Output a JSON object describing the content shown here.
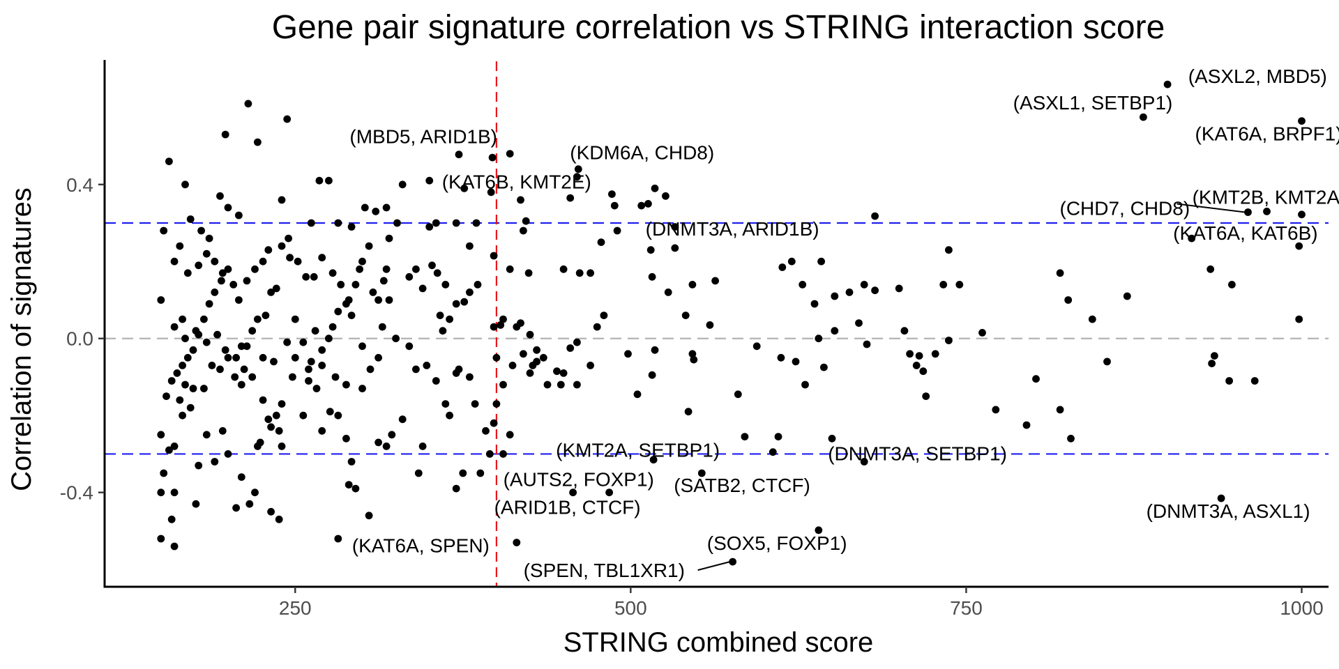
{
  "chart_data": {
    "type": "scatter",
    "title": "Gene pair signature correlation vs STRING interaction score",
    "xlabel": "STRING combined score",
    "ylabel": "Correlation of signatures",
    "xlim": [
      108,
      1020
    ],
    "ylim": [
      -0.645,
      0.72
    ],
    "xticks": [
      250,
      500,
      750,
      1000
    ],
    "xtick_labels": [
      "250",
      "500",
      "750",
      "1000"
    ],
    "yticks": [
      0.4,
      0.0,
      -0.4
    ],
    "ytick_labels": [
      "0.4",
      "0.0",
      "-0.4"
    ],
    "grid": false,
    "reference_lines": {
      "vertical": [
        {
          "x": 400,
          "color": "#e8161b",
          "style": "dashed"
        }
      ],
      "horizontal": [
        {
          "y": 0.3,
          "color": "#1f1ff0",
          "style": "dashed"
        },
        {
          "y": -0.3,
          "color": "#1f1ff0",
          "style": "dashed"
        },
        {
          "y": 0.0,
          "color": "#b3b3b3",
          "style": "dashed"
        }
      ]
    },
    "point_color": "#000000",
    "annotations": [
      {
        "label": "(ASXL2, MBD5)",
        "x": 905,
        "y": 0.66
      },
      {
        "label": "(ASXL1, SETBP1)",
        "x": 882,
        "y": 0.575
      },
      {
        "label": "(KAT6A, BRPF1)",
        "x": 999,
        "y": 0.565
      },
      {
        "label": "(MBD5, ARID1B)",
        "x": 372,
        "y": 0.478
      },
      {
        "label": "(KDM6A, CHD8)",
        "x": 461,
        "y": 0.44
      },
      {
        "label": "(KAT6B, KMT2E)",
        "x": 376,
        "y": 0.39
      },
      {
        "label": "(CHD7, CHD8)",
        "x": 960,
        "y": 0.328
      },
      {
        "label": "(KMT2B, KMT2A)",
        "x": 974,
        "y": 0.33
      },
      {
        "label": "(DNMT3A, ARID1B)",
        "x": 682,
        "y": 0.318
      },
      {
        "label": "(KAT6A, KAT6B)",
        "x": 999,
        "y": 0.322
      },
      {
        "label": "(KMT2A, SETBP1)",
        "x": 517,
        "y": -0.315
      },
      {
        "label": "(DNMT3A, SETBP1)",
        "x": 674,
        "y": -0.32
      },
      {
        "label": "(AUTS2, FOXP1)",
        "x": 457,
        "y": -0.4
      },
      {
        "label": "(SATB2, CTCF)",
        "x": 553,
        "y": -0.35
      },
      {
        "label": "(ARID1B, CTCF)",
        "x": 484,
        "y": -0.405
      },
      {
        "label": "(DNMT3A, ASXL1)",
        "x": 940,
        "y": -0.415
      },
      {
        "label": "(KAT6A, SPEN)",
        "x": 415,
        "y": -0.53
      },
      {
        "label": "(SOX5, FOXP1)",
        "x": 640,
        "y": -0.498
      },
      {
        "label": "(SPEN, TBL1XR1)",
        "x": 576,
        "y": -0.58
      }
    ],
    "points": [
      [
        900,
        0.66
      ],
      [
        882,
        0.575
      ],
      [
        1000,
        0.565
      ],
      [
        372,
        0.478
      ],
      [
        410,
        0.48
      ],
      [
        461,
        0.44
      ],
      [
        376,
        0.39
      ],
      [
        397,
        0.47
      ],
      [
        960,
        0.328
      ],
      [
        974,
        0.33
      ],
      [
        682,
        0.318
      ],
      [
        1000,
        0.322
      ],
      [
        517,
        -0.315
      ],
      [
        674,
        -0.32
      ],
      [
        457,
        -0.4
      ],
      [
        553,
        -0.35
      ],
      [
        484,
        -0.4
      ],
      [
        940,
        -0.415
      ],
      [
        415,
        -0.53
      ],
      [
        640,
        -0.498
      ],
      [
        576,
        -0.58
      ],
      [
        998,
        0.24
      ],
      [
        918,
        0.26
      ],
      [
        998,
        0.05
      ],
      [
        932,
        0.18
      ],
      [
        948,
        0.14
      ],
      [
        935,
        -0.045
      ],
      [
        933,
        -0.065
      ],
      [
        946,
        -0.11
      ],
      [
        965,
        -0.11
      ],
      [
        870,
        0.11
      ],
      [
        820,
        0.17
      ],
      [
        826,
        0.1
      ],
      [
        844,
        0.05
      ],
      [
        855,
        -0.06
      ],
      [
        802,
        -0.105
      ],
      [
        795,
        -0.225
      ],
      [
        820,
        -0.185
      ],
      [
        828,
        -0.26
      ],
      [
        772,
        -0.185
      ],
      [
        737,
        0.23
      ],
      [
        745,
        0.14
      ],
      [
        733,
        0.14
      ],
      [
        737,
        -0.005
      ],
      [
        762,
        0.015
      ],
      [
        727,
        -0.04
      ],
      [
        715,
        -0.045
      ],
      [
        713,
        -0.07
      ],
      [
        718,
        -0.085
      ],
      [
        720,
        -0.15
      ],
      [
        704,
        0.02
      ],
      [
        708,
        -0.04
      ],
      [
        700,
        0.13
      ],
      [
        682,
        0.125
      ],
      [
        670,
        0.04
      ],
      [
        674,
        0.14
      ],
      [
        663,
        0.12
      ],
      [
        652,
        0.11
      ],
      [
        652,
        0.02
      ],
      [
        637,
        0.09
      ],
      [
        642,
        0.2
      ],
      [
        620,
        0.2
      ],
      [
        628,
        0.14
      ],
      [
        613,
        0.185
      ],
      [
        640,
        0.0
      ],
      [
        644,
        -0.075
      ],
      [
        650,
        -0.26
      ],
      [
        630,
        -0.12
      ],
      [
        676,
        -0.015
      ],
      [
        612,
        -0.05
      ],
      [
        623,
        -0.06
      ],
      [
        594,
        -0.02
      ],
      [
        610,
        -0.255
      ],
      [
        606,
        -0.295
      ],
      [
        580,
        -0.145
      ],
      [
        585,
        -0.255
      ],
      [
        526,
        0.37
      ],
      [
        518,
        0.39
      ],
      [
        513,
        0.35
      ],
      [
        508,
        0.345
      ],
      [
        533,
        0.29
      ],
      [
        533,
        0.235
      ],
      [
        528,
        0.12
      ],
      [
        515,
        0.23
      ],
      [
        516,
        0.16
      ],
      [
        541,
        0.06
      ],
      [
        563,
        0.15
      ],
      [
        546,
        0.14
      ],
      [
        559,
        0.035
      ],
      [
        546,
        -0.04
      ],
      [
        547,
        -0.055
      ],
      [
        543,
        -0.19
      ],
      [
        518,
        -0.03
      ],
      [
        516,
        -0.095
      ],
      [
        505,
        -0.145
      ],
      [
        498,
        -0.04
      ],
      [
        490,
        0.28
      ],
      [
        488,
        0.345
      ],
      [
        486,
        0.375
      ],
      [
        478,
        0.25
      ],
      [
        460,
        0.42
      ],
      [
        455,
        0.365
      ],
      [
        450,
        0.18
      ],
      [
        462,
        0.17
      ],
      [
        470,
        0.17
      ],
      [
        475,
        0.03
      ],
      [
        480,
        0.06
      ],
      [
        470,
        -0.07
      ],
      [
        460,
        -0.12
      ],
      [
        460,
        -0.01
      ],
      [
        455,
        -0.025
      ],
      [
        450,
        -0.09
      ],
      [
        445,
        -0.085
      ],
      [
        435,
        -0.05
      ],
      [
        430,
        -0.06
      ],
      [
        425,
        -0.09
      ],
      [
        420,
        0.28
      ],
      [
        418,
        0.36
      ],
      [
        422,
        0.305
      ],
      [
        424,
        0.17
      ],
      [
        410,
        0.18
      ],
      [
        418,
        0.04
      ],
      [
        425,
        0.01
      ],
      [
        415,
        0.03
      ],
      [
        405,
        0.05
      ],
      [
        403,
        0.035
      ],
      [
        400,
        -0.17
      ],
      [
        405,
        -0.12
      ],
      [
        412,
        -0.07
      ],
      [
        420,
        -0.04
      ],
      [
        430,
        -0.03
      ],
      [
        438,
        -0.12
      ],
      [
        448,
        -0.12
      ],
      [
        427,
        -0.07
      ],
      [
        398,
        0.215
      ],
      [
        396,
        0.38
      ],
      [
        385,
        0.3
      ],
      [
        380,
        0.24
      ],
      [
        370,
        0.3
      ],
      [
        380,
        0.12
      ],
      [
        386,
        0.14
      ],
      [
        376,
        0.095
      ],
      [
        370,
        0.09
      ],
      [
        365,
        0.05
      ],
      [
        358,
        0.06
      ],
      [
        362,
        0.14
      ],
      [
        355,
        0.3
      ],
      [
        350,
        0.29
      ],
      [
        345,
        0.13
      ],
      [
        340,
        0.18
      ],
      [
        335,
        0.16
      ],
      [
        330,
        0.4
      ],
      [
        326,
        0.3
      ],
      [
        320,
        0.26
      ],
      [
        318,
        0.18
      ],
      [
        316,
        0.15
      ],
      [
        312,
        0.1
      ],
      [
        308,
        0.12
      ],
      [
        305,
        0.24
      ],
      [
        302,
        0.34
      ],
      [
        300,
        0.2
      ],
      [
        298,
        0.18
      ],
      [
        295,
        0.14
      ],
      [
        290,
        0.1
      ],
      [
        288,
        0.09
      ],
      [
        282,
        0.07
      ],
      [
        278,
        0.03
      ],
      [
        275,
        0.0
      ],
      [
        270,
        -0.03
      ],
      [
        265,
        0.02
      ],
      [
        260,
        -0.08
      ],
      [
        256,
        -0.01
      ],
      [
        250,
        0.05
      ],
      [
        245,
        0.26
      ],
      [
        240,
        0.36
      ],
      [
        236,
        0.13
      ],
      [
        232,
        0.12
      ],
      [
        228,
        0.06
      ],
      [
        222,
        0.05
      ],
      [
        218,
        0.02
      ],
      [
        214,
        -0.02
      ],
      [
        210,
        -0.12
      ],
      [
        205,
        -0.1
      ],
      [
        200,
        0.18
      ],
      [
        195,
        0.15
      ],
      [
        190,
        0.12
      ],
      [
        186,
        0.09
      ],
      [
        182,
        0.05
      ],
      [
        178,
        0.01
      ],
      [
        174,
        -0.03
      ],
      [
        170,
        -0.05
      ],
      [
        166,
        -0.07
      ],
      [
        162,
        -0.09
      ],
      [
        158,
        -0.11
      ],
      [
        154,
        -0.15
      ],
      [
        150,
        -0.25
      ],
      [
        152,
        0.28
      ],
      [
        150,
        0.1
      ],
      [
        156,
        0.46
      ],
      [
        168,
        0.4
      ],
      [
        172,
        0.31
      ],
      [
        180,
        0.28
      ],
      [
        186,
        0.26
      ],
      [
        194,
        0.37
      ],
      [
        200,
        0.34
      ],
      [
        208,
        0.32
      ],
      [
        215,
        0.61
      ],
      [
        222,
        0.51
      ],
      [
        198,
        0.53
      ],
      [
        244,
        0.57
      ],
      [
        262,
        0.3
      ],
      [
        268,
        0.41
      ],
      [
        275,
        0.41
      ],
      [
        282,
        0.3
      ],
      [
        292,
        0.29
      ],
      [
        310,
        0.33
      ],
      [
        318,
        0.34
      ],
      [
        350,
        0.41
      ],
      [
        352,
        0.19
      ],
      [
        356,
        0.17
      ],
      [
        360,
        0.02
      ],
      [
        372,
        -0.08
      ],
      [
        380,
        -0.1
      ],
      [
        384,
        -0.17
      ],
      [
        392,
        -0.24
      ],
      [
        398,
        -0.22
      ],
      [
        395,
        -0.3
      ],
      [
        388,
        -0.35
      ],
      [
        375,
        -0.35
      ],
      [
        370,
        -0.39
      ],
      [
        365,
        -0.2
      ],
      [
        355,
        -0.11
      ],
      [
        348,
        -0.07
      ],
      [
        345,
        -0.28
      ],
      [
        342,
        -0.35
      ],
      [
        330,
        -0.21
      ],
      [
        322,
        -0.25
      ],
      [
        318,
        -0.28
      ],
      [
        312,
        -0.27
      ],
      [
        300,
        -0.13
      ],
      [
        292,
        -0.32
      ],
      [
        288,
        -0.26
      ],
      [
        282,
        -0.2
      ],
      [
        276,
        -0.19
      ],
      [
        270,
        -0.24
      ],
      [
        266,
        -0.13
      ],
      [
        260,
        -0.11
      ],
      [
        256,
        -0.2
      ],
      [
        250,
        -0.05
      ],
      [
        244,
        -0.01
      ],
      [
        240,
        -0.17
      ],
      [
        236,
        -0.2
      ],
      [
        230,
        -0.21
      ],
      [
        224,
        -0.27
      ],
      [
        222,
        -0.28
      ],
      [
        220,
        -0.4
      ],
      [
        216,
        -0.43
      ],
      [
        210,
        -0.36
      ],
      [
        206,
        -0.44
      ],
      [
        200,
        -0.3
      ],
      [
        196,
        -0.24
      ],
      [
        190,
        -0.32
      ],
      [
        184,
        -0.25
      ],
      [
        178,
        -0.33
      ],
      [
        176,
        -0.43
      ],
      [
        172,
        -0.18
      ],
      [
        166,
        -0.2
      ],
      [
        160,
        -0.4
      ],
      [
        158,
        -0.47
      ],
      [
        160,
        -0.54
      ],
      [
        150,
        -0.52
      ],
      [
        150,
        -0.4
      ],
      [
        152,
        -0.35
      ],
      [
        156,
        -0.29
      ],
      [
        160,
        -0.28
      ],
      [
        164,
        -0.16
      ],
      [
        168,
        -0.12
      ],
      [
        174,
        -0.13
      ],
      [
        182,
        -0.13
      ],
      [
        188,
        -0.07
      ],
      [
        194,
        -0.08
      ],
      [
        200,
        -0.05
      ],
      [
        210,
        -0.02
      ],
      [
        218,
        -0.1
      ],
      [
        226,
        -0.16
      ],
      [
        232,
        -0.23
      ],
      [
        238,
        -0.24
      ],
      [
        240,
        -0.28
      ],
      [
        232,
        -0.45
      ],
      [
        238,
        -0.47
      ],
      [
        282,
        -0.52
      ],
      [
        290,
        -0.38
      ],
      [
        295,
        -0.39
      ],
      [
        305,
        -0.46
      ],
      [
        405,
        -0.3
      ],
      [
        410,
        -0.25
      ],
      [
        400,
        -0.05
      ],
      [
        398,
        0.03
      ],
      [
        370,
        -0.09
      ],
      [
        362,
        -0.17
      ],
      [
        340,
        -0.08
      ],
      [
        335,
        -0.02
      ],
      [
        325,
        0.0
      ],
      [
        320,
        0.1
      ],
      [
        315,
        0.03
      ],
      [
        312,
        -0.05
      ],
      [
        306,
        -0.08
      ],
      [
        300,
        -0.02
      ],
      [
        292,
        0.06
      ],
      [
        284,
        0.14
      ],
      [
        278,
        0.17
      ],
      [
        270,
        0.21
      ],
      [
        264,
        0.16
      ],
      [
        258,
        0.16
      ],
      [
        252,
        0.2
      ],
      [
        246,
        0.21
      ],
      [
        240,
        0.24
      ],
      [
        230,
        0.23
      ],
      [
        226,
        0.2
      ],
      [
        220,
        0.18
      ],
      [
        214,
        0.15
      ],
      [
        208,
        0.1
      ],
      [
        204,
        0.14
      ],
      [
        196,
        0.17
      ],
      [
        190,
        0.2
      ],
      [
        184,
        0.22
      ],
      [
        178,
        0.19
      ],
      [
        170,
        0.17
      ],
      [
        164,
        0.24
      ],
      [
        160,
        0.2
      ],
      [
        168,
        0.0
      ],
      [
        176,
        0.02
      ],
      [
        184,
        -0.01
      ],
      [
        192,
        0.01
      ],
      [
        198,
        -0.03
      ],
      [
        206,
        -0.05
      ],
      [
        212,
        -0.08
      ],
      [
        160,
        0.03
      ],
      [
        166,
        0.05
      ],
      [
        226,
        -0.05
      ],
      [
        234,
        -0.06
      ],
      [
        248,
        -0.1
      ],
      [
        262,
        -0.06
      ],
      [
        270,
        -0.07
      ],
      [
        280,
        -0.1
      ],
      [
        288,
        -0.12
      ]
    ]
  }
}
